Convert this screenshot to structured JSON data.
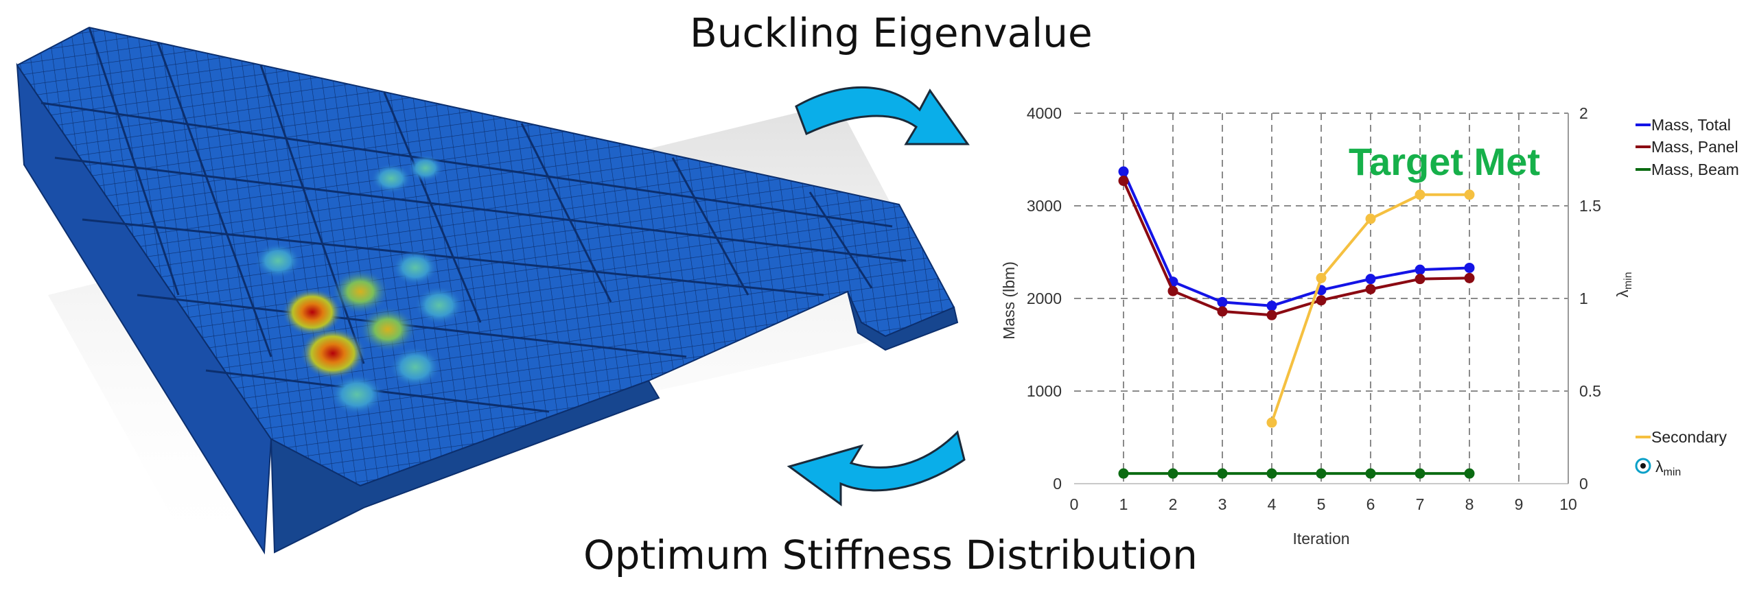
{
  "captions": {
    "top": "Buckling Eigenvalue",
    "bottom": "Optimum Stiffness Distribution"
  },
  "colors": {
    "arrow": "#0aaee9",
    "wing_blue": "#1f63c8",
    "total": "#1414e6",
    "panel": "#8b0a12",
    "beam": "#0b6b12",
    "secondary": "#f5c040",
    "target": "#16b04a",
    "grid": "#8a8a8a"
  },
  "chart_data": {
    "type": "line",
    "xlabel": "Iteration",
    "ylabel": "Mass (lbm)",
    "y2label": "λmin",
    "xlim": [
      0,
      10
    ],
    "ylim": [
      0,
      4000
    ],
    "y2lim": [
      0,
      2
    ],
    "xticks": [
      "0",
      "1",
      "2",
      "3",
      "4",
      "5",
      "6",
      "7",
      "8",
      "9",
      "10"
    ],
    "yticks": [
      "0",
      "1000",
      "2000",
      "3000",
      "4000"
    ],
    "y2ticks": [
      "0",
      "0.5",
      "1",
      "1.5",
      "2"
    ],
    "grid": true,
    "annotation": "Target Met",
    "legend_placement": "right",
    "series": [
      {
        "name": "Mass, Total",
        "axis": "left",
        "color": "#1414e6",
        "x": [
          1,
          2,
          3,
          4,
          5,
          6,
          7,
          8
        ],
        "values": [
          3370,
          2180,
          1960,
          1920,
          2090,
          2210,
          2310,
          2330
        ]
      },
      {
        "name": "Mass, Panel",
        "axis": "left",
        "color": "#8b0a12",
        "x": [
          1,
          2,
          3,
          4,
          5,
          6,
          7,
          8
        ],
        "values": [
          3270,
          2080,
          1860,
          1820,
          1980,
          2100,
          2210,
          2220
        ]
      },
      {
        "name": "Mass, Beam",
        "axis": "left",
        "color": "#0b6b12",
        "x": [
          1,
          2,
          3,
          4,
          5,
          6,
          7,
          8
        ],
        "values": [
          110,
          110,
          110,
          110,
          110,
          110,
          110,
          110
        ]
      },
      {
        "name": "Secondary",
        "axis": "right",
        "color": "#f5c040",
        "x": [
          4,
          5,
          6,
          7,
          8
        ],
        "values": [
          0.33,
          1.11,
          1.43,
          1.56,
          1.56
        ]
      }
    ],
    "legend_extra": "λmin"
  }
}
